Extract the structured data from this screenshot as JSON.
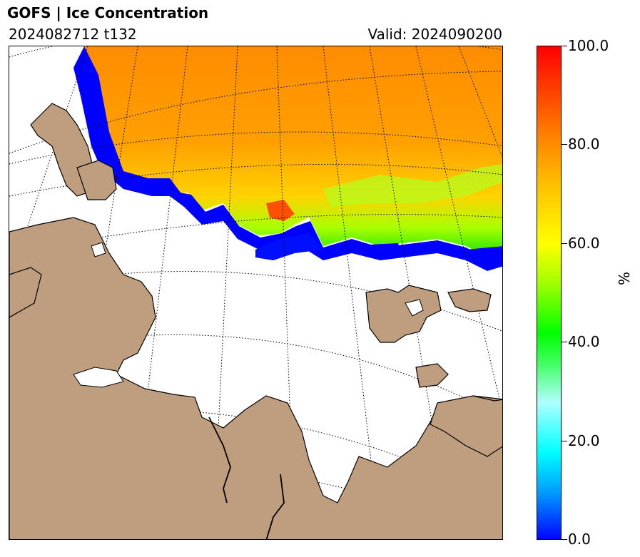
{
  "header": {
    "title": "GOFS  |  Ice Concentration",
    "run": "2024082712 t132",
    "valid": "Valid: 2024090200"
  },
  "colorbar": {
    "unit": "%",
    "ticks": [
      "100.0",
      "80.0",
      "60.0",
      "40.0",
      "20.0",
      "0.0"
    ],
    "colors": [
      "#0000ff",
      "#00a0ff",
      "#00ffff",
      "#80ffff",
      "#00ff00",
      "#c0ff00",
      "#ffff00",
      "#ffc000",
      "#ff8000",
      "#ff4000",
      "#ff0000"
    ]
  },
  "map": {
    "land_color": "#bf9e80",
    "ocean_color": "#ffffff",
    "ice_color_low": "#0000ff",
    "ice_color_high": "#ff8c00"
  }
}
